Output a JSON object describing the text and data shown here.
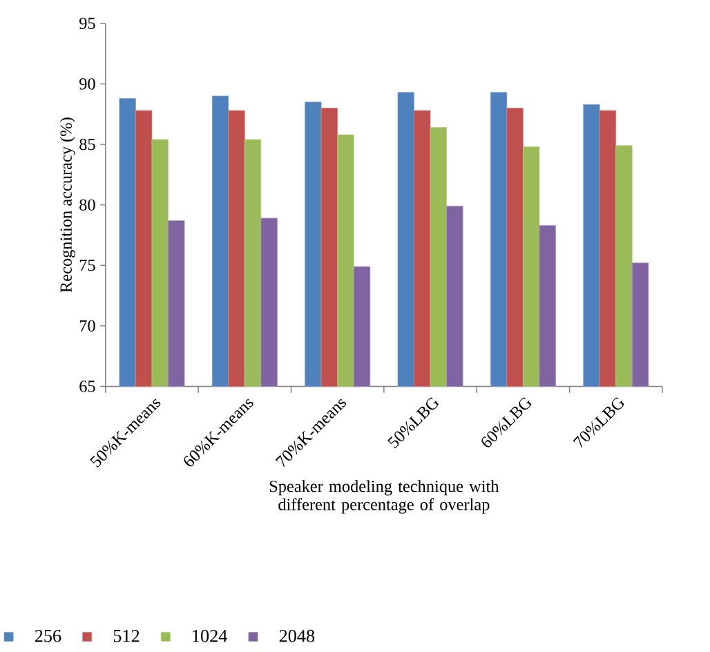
{
  "chart_data": {
    "type": "bar",
    "xlabel": "Speaker modeling technique with  different percentage of   overlap",
    "ylabel": "Recognition accuracy (%)",
    "categories": [
      "50%K-means",
      "60%K-means",
      "70%K-means",
      "50%LBG",
      "60%LBG",
      "70%LBG"
    ],
    "series": [
      {
        "name": "256",
        "color": "#4f81bd",
        "values": [
          88.8,
          89.0,
          88.5,
          89.3,
          89.3,
          88.3
        ]
      },
      {
        "name": "512",
        "color": "#c0504d",
        "values": [
          87.8,
          87.8,
          88.0,
          87.8,
          88.0,
          87.8
        ]
      },
      {
        "name": "1024",
        "color": "#9bbb59",
        "values": [
          85.4,
          85.4,
          85.8,
          86.4,
          84.8,
          84.9
        ]
      },
      {
        "name": "2048",
        "color": "#8064a2",
        "values": [
          78.7,
          78.9,
          74.9,
          79.9,
          78.3,
          75.2
        ]
      }
    ],
    "ylim": [
      65,
      95
    ],
    "yticks": [
      65,
      70,
      75,
      80,
      85,
      90,
      95
    ],
    "grid": false,
    "legend": "bottom"
  }
}
